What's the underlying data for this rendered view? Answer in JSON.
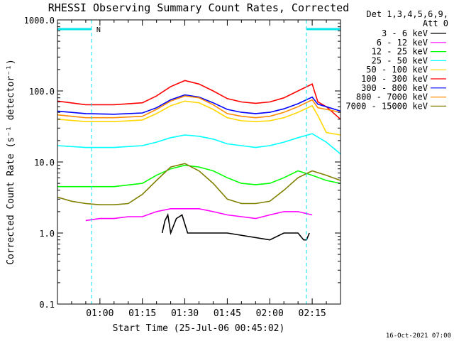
{
  "chart_data": {
    "type": "line",
    "title": "RHESSI Observing Summary Count Rates, Corrected",
    "xlabel": "Start Time (25-Jul-06 00:45:02)",
    "ylabel": "Corrected Count Rate (s⁻¹ detector⁻¹)",
    "yscale": "log",
    "ylim": [
      0.1,
      1000.0
    ],
    "xlim_minutes": [
      0,
      100
    ],
    "yticks": [
      {
        "value": 0.1,
        "label": "0.1"
      },
      {
        "value": 1.0,
        "label": "1.0"
      },
      {
        "value": 10.0,
        "label": "10.0"
      },
      {
        "value": 100.0,
        "label": "100.0"
      },
      {
        "value": 1000.0,
        "label": "1000.0"
      }
    ],
    "xticks": [
      {
        "minute": 15,
        "label": "01:00"
      },
      {
        "minute": 30,
        "label": "01:15"
      },
      {
        "minute": 45,
        "label": "01:30"
      },
      {
        "minute": 60,
        "label": "01:45"
      },
      {
        "minute": 75,
        "label": "02:00"
      },
      {
        "minute": 90,
        "label": "02:15"
      }
    ],
    "legend_header": [
      "Det 1,3,4,5,6,9,",
      "Att 0"
    ],
    "legend_position": "right",
    "timestamp": "16-Oct-2021 07:00",
    "markers": {
      "night_periods": [
        [
          0,
          12
        ],
        [
          88,
          100
        ]
      ],
      "vertical_lines": [
        12,
        88,
        100
      ],
      "flag_label": "N"
    },
    "series": [
      {
        "name": "3 - 6 keV",
        "color": "#000000",
        "x": [
          37,
          38,
          39,
          40,
          42,
          44,
          46,
          50,
          60,
          75,
          80,
          85,
          87,
          88,
          89
        ],
        "y": [
          1.0,
          1.5,
          1.8,
          1.0,
          1.6,
          1.8,
          1.0,
          1.0,
          1.0,
          0.8,
          1.0,
          1.0,
          0.8,
          0.8,
          1.0
        ]
      },
      {
        "name": "6 - 12 keV",
        "color": "#ff00ff",
        "x": [
          10,
          15,
          20,
          25,
          30,
          35,
          40,
          45,
          50,
          55,
          60,
          65,
          70,
          75,
          80,
          85,
          90
        ],
        "y": [
          1.5,
          1.6,
          1.6,
          1.7,
          1.7,
          2.0,
          2.2,
          2.2,
          2.2,
          2.0,
          1.8,
          1.7,
          1.6,
          1.8,
          2.0,
          2.0,
          1.8
        ]
      },
      {
        "name": "12 - 25 keV",
        "color": "#00ff00",
        "x": [
          0,
          10,
          20,
          30,
          35,
          40,
          45,
          50,
          55,
          60,
          65,
          70,
          75,
          80,
          85,
          90,
          95,
          100
        ],
        "y": [
          4.5,
          4.5,
          4.5,
          5.0,
          6.5,
          8.0,
          9.0,
          8.5,
          7.5,
          6.0,
          5.0,
          4.8,
          5.0,
          6.0,
          7.5,
          6.5,
          5.5,
          5.0
        ]
      },
      {
        "name": "25 - 50 keV",
        "color": "#00ffff",
        "x": [
          0,
          10,
          20,
          30,
          35,
          40,
          45,
          50,
          55,
          60,
          65,
          70,
          75,
          80,
          85,
          90,
          95,
          100
        ],
        "y": [
          17,
          16,
          16,
          17,
          19,
          22,
          24,
          23,
          21,
          18,
          17,
          16,
          17,
          19,
          22,
          25,
          19,
          13
        ]
      },
      {
        "name": "50 - 100 keV",
        "color": "#ffd700",
        "x": [
          0,
          10,
          20,
          30,
          35,
          40,
          45,
          50,
          55,
          60,
          65,
          70,
          75,
          80,
          85,
          90,
          92,
          95,
          100
        ],
        "y": [
          40,
          37,
          37,
          39,
          48,
          62,
          72,
          68,
          55,
          42,
          38,
          37,
          38,
          42,
          50,
          62,
          45,
          26,
          24
        ]
      },
      {
        "name": "100 - 300 keV",
        "color": "#ff0000",
        "x": [
          0,
          10,
          20,
          30,
          35,
          40,
          45,
          50,
          55,
          60,
          65,
          70,
          75,
          80,
          85,
          90,
          92,
          95,
          100
        ],
        "y": [
          72,
          64,
          64,
          68,
          85,
          115,
          140,
          125,
          100,
          78,
          70,
          67,
          70,
          80,
          100,
          125,
          70,
          60,
          40
        ]
      },
      {
        "name": "300 - 800 keV",
        "color": "#0000ff",
        "x": [
          0,
          10,
          20,
          30,
          35,
          40,
          45,
          50,
          55,
          60,
          65,
          70,
          75,
          80,
          85,
          90,
          92,
          95,
          100
        ],
        "y": [
          52,
          48,
          47,
          49,
          58,
          75,
          88,
          82,
          68,
          55,
          50,
          48,
          50,
          56,
          66,
          82,
          65,
          60,
          52
        ]
      },
      {
        "name": "800 - 7000 keV",
        "color": "#ff8c00",
        "x": [
          0,
          10,
          20,
          30,
          35,
          40,
          45,
          50,
          55,
          60,
          65,
          70,
          75,
          80,
          85,
          90,
          92,
          95,
          100
        ],
        "y": [
          46,
          42,
          42,
          44,
          55,
          72,
          85,
          80,
          64,
          48,
          44,
          42,
          44,
          50,
          60,
          75,
          58,
          55,
          50
        ]
      },
      {
        "name": "7000 - 15000 keV",
        "color": "#808000",
        "x": [
          0,
          5,
          10,
          15,
          20,
          25,
          30,
          35,
          40,
          45,
          50,
          55,
          60,
          65,
          70,
          75,
          80,
          85,
          90,
          95,
          100
        ],
        "y": [
          3.2,
          2.8,
          2.6,
          2.5,
          2.5,
          2.6,
          3.5,
          5.5,
          8.5,
          9.5,
          7.5,
          5.0,
          3.0,
          2.6,
          2.6,
          2.8,
          4.0,
          6.0,
          7.5,
          6.5,
          5.5
        ]
      }
    ]
  }
}
